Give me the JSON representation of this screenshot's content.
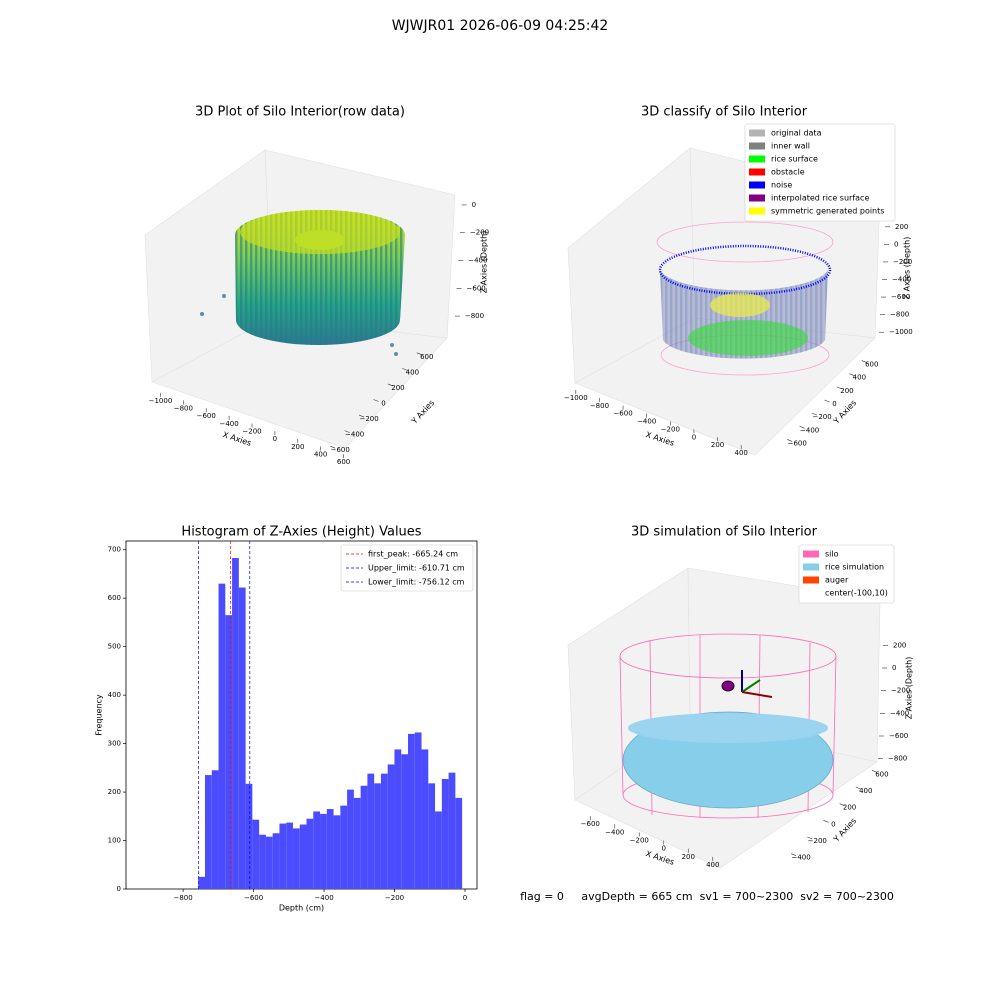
{
  "suptitle": "WJWJR01 2026-06-09 04:25:42",
  "chart_data": [
    {
      "type": "scatter3d",
      "title": "3D Plot of Silo Interior(row data)",
      "xlabel": "X Axies",
      "ylabel": "Y Axies",
      "zlabel": "Z Axies (Depth)",
      "xlim": [
        -1100,
        700
      ],
      "xticks": [
        {
          "value": -1000,
          "label": "−1000"
        },
        {
          "value": -800,
          "label": "−800"
        },
        {
          "value": -600,
          "label": "−600"
        },
        {
          "value": -400,
          "label": "−400"
        },
        {
          "value": -200,
          "label": "−200"
        },
        0,
        200,
        400,
        600
      ],
      "ylim": [
        -700,
        700
      ],
      "yticks": [
        {
          "value": -600,
          "label": "−600"
        },
        {
          "value": -400,
          "label": "−400"
        },
        {
          "value": -200,
          "label": "−200"
        },
        0,
        200,
        400,
        600
      ],
      "zlim": [
        -900,
        50
      ],
      "zticks": [
        {
          "value": -800,
          "label": "−800"
        },
        {
          "value": -600,
          "label": "−600"
        },
        {
          "value": -400,
          "label": "−400"
        },
        {
          "value": -200,
          "label": "−200"
        },
        0
      ]
    },
    {
      "type": "scatter3d",
      "title": "3D classify of Silo Interior",
      "xlabel": "X Axies",
      "ylabel": "Y Axies",
      "zlabel": "Z Axies (Depth)",
      "xlim": [
        -1100,
        500
      ],
      "xticks": [
        {
          "value": -1000,
          "label": "−1000"
        },
        {
          "value": -800,
          "label": "−800"
        },
        {
          "value": -600,
          "label": "−600"
        },
        {
          "value": -400,
          "label": "−400"
        },
        {
          "value": -200,
          "label": "−200"
        },
        0,
        200,
        400
      ],
      "ylim": [
        -700,
        700
      ],
      "yticks": [
        {
          "value": -600,
          "label": "−600"
        },
        {
          "value": -400,
          "label": "−400"
        },
        {
          "value": -200,
          "label": "−200"
        },
        0,
        200,
        400,
        600
      ],
      "zlim": [
        -1100,
        300
      ],
      "zticks": [
        {
          "value": -1000,
          "label": "−1000"
        },
        {
          "value": -800,
          "label": "−800"
        },
        {
          "value": -600,
          "label": "−600"
        },
        {
          "value": -400,
          "label": "−400"
        },
        {
          "value": -200,
          "label": "−200"
        },
        0,
        200
      ],
      "series": [
        {
          "name": "original data",
          "color": "#b3b3b3"
        },
        {
          "name": "inner wall",
          "color": "#808080"
        },
        {
          "name": "rice surface",
          "color": "#00ff00"
        },
        {
          "name": "obstacle",
          "color": "#ff0000"
        },
        {
          "name": "noise",
          "color": "#0000ff"
        },
        {
          "name": "interpolated rice surface",
          "color": "#800080"
        },
        {
          "name": "symmetric generated points",
          "color": "#ffff00"
        }
      ]
    },
    {
      "type": "histogram",
      "title": "Histogram of Z-Axies (Height) Values",
      "xlabel": "Depth (cm)",
      "ylabel": "Frequency",
      "color": "#4c4cff",
      "bins": [
        -757.0,
        -737.8,
        -718.6,
        -699.4,
        -680.2,
        -661.0,
        -641.8,
        -622.6,
        -603.4,
        -584.2,
        -565.0,
        -545.8,
        -526.6,
        -507.4,
        -488.2,
        -469.0,
        -449.8,
        -430.6,
        -411.4,
        -392.2,
        -373.0,
        -353.8,
        -334.6,
        -315.4,
        -296.2,
        -277.0,
        -257.8,
        -238.6,
        -219.4,
        -200.2,
        -181.0,
        -161.8,
        -142.6,
        -123.4,
        -104.2,
        -85.0,
        -65.8,
        -46.6,
        -27.4,
        -8.2
      ],
      "values": [
        25,
        235,
        245,
        630,
        565,
        683,
        622,
        217,
        143,
        112,
        108,
        115,
        135,
        137,
        125,
        133,
        145,
        160,
        155,
        165,
        152,
        172,
        205,
        188,
        213,
        238,
        218,
        238,
        257,
        288,
        278,
        320,
        323,
        288,
        218,
        160,
        227,
        240,
        188
      ],
      "xlim": [
        -962,
        34
      ],
      "xticks": [
        {
          "value": -800,
          "label": "−800"
        },
        {
          "value": -600,
          "label": "−600"
        },
        {
          "value": -400,
          "label": "−400"
        },
        {
          "value": -200,
          "label": "−200"
        },
        0
      ],
      "ylim": [
        0,
        718
      ],
      "yticks": [
        0,
        100,
        200,
        300,
        400,
        500,
        600,
        700
      ],
      "lines": [
        {
          "name": "first_peak: -665.24 cm",
          "value": -665.24,
          "color": "#ff0000"
        },
        {
          "name": "Upper_limit: -610.71 cm",
          "value": -610.71,
          "color": "#0000ff"
        },
        {
          "name": "Lower_limit: -756.12 cm",
          "value": -756.12,
          "color": "#0000ff"
        }
      ],
      "legend": "upper right"
    },
    {
      "type": "scatter3d",
      "title": "3D simulation of Silo Interior",
      "xlabel": "X Axies",
      "ylabel": "Y Axies",
      "zlabel": "Z Axies (Depth)",
      "xlim": [
        -700,
        500
      ],
      "xticks": [
        {
          "value": -600,
          "label": "−600"
        },
        {
          "value": -400,
          "label": "−400"
        },
        {
          "value": -200,
          "label": "−200"
        },
        0,
        200,
        400
      ],
      "ylim": [
        -500,
        700
      ],
      "yticks": [
        {
          "value": -400,
          "label": "−400"
        },
        {
          "value": -200,
          "label": "−200"
        },
        0,
        200,
        400,
        600
      ],
      "zlim": [
        -900,
        300
      ],
      "zticks": [
        {
          "value": -800,
          "label": "−800"
        },
        {
          "value": -600,
          "label": "−600"
        },
        {
          "value": -400,
          "label": "−400"
        },
        {
          "value": -200,
          "label": "−200"
        },
        0,
        200
      ],
      "series": [
        {
          "name": "silo",
          "color": "#ff69b4"
        },
        {
          "name": "rice simulation",
          "color": "#87ceeb"
        },
        {
          "name": "auger",
          "color": "#ff4500"
        },
        {
          "name": "center(-100,10)"
        }
      ]
    }
  ],
  "footer": "flag = 0     avgDepth = 665 cm  sv1 = 700~2300  sv2 = 700~2300"
}
